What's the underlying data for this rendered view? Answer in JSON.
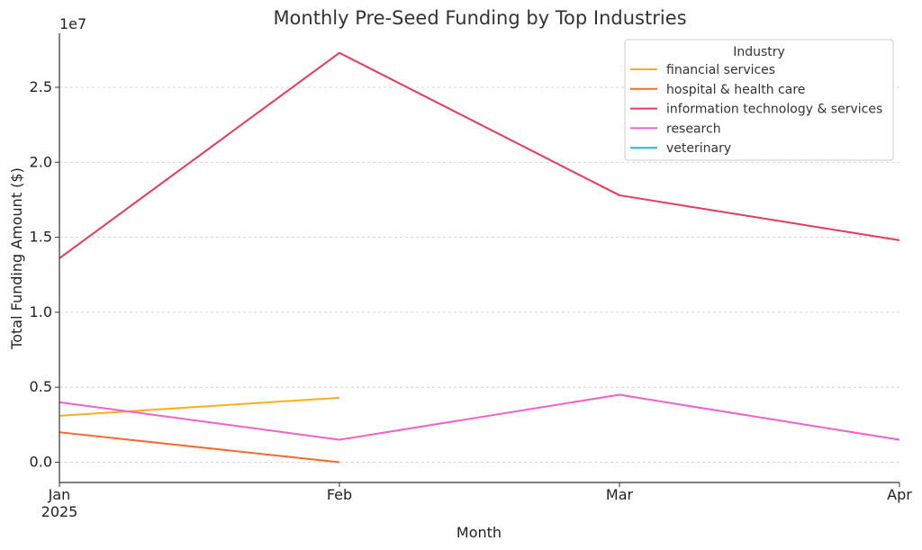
{
  "chart_data": {
    "type": "line",
    "title": "Monthly Pre-Seed Funding by Top Industries",
    "xlabel": "Month",
    "ylabel": "Total Funding Amount ($)",
    "y_offset_label": "1e7",
    "categories": [
      "Jan",
      "Feb",
      "Mar",
      "Apr"
    ],
    "x_year_label": "2025",
    "y_ticks": [
      0.0,
      0.5,
      1.0,
      1.5,
      2.0,
      2.5
    ],
    "y_tick_labels": [
      "0.0",
      "0.5",
      "1.0",
      "1.5",
      "2.0",
      "2.5"
    ],
    "ylim": [
      -0.135,
      2.86
    ],
    "grid": true,
    "legend": {
      "title": "Industry",
      "placement": "top-right"
    },
    "series": [
      {
        "name": "financial services",
        "color": "#fbaf1c",
        "values": [
          0.31,
          0.43,
          null,
          null
        ]
      },
      {
        "name": "hospital & health care",
        "color": "#f26b2a",
        "values": [
          0.2,
          0.0,
          null,
          null
        ]
      },
      {
        "name": "information technology & services",
        "color": "#e8395a",
        "values": [
          1.36,
          2.73,
          1.78,
          1.48
        ]
      },
      {
        "name": "research",
        "color": "#f062c9",
        "values": [
          0.4,
          0.15,
          0.45,
          0.15
        ]
      },
      {
        "name": "veterinary",
        "color": "#1fb9e8",
        "values": [
          null,
          null,
          null,
          null
        ]
      }
    ]
  }
}
